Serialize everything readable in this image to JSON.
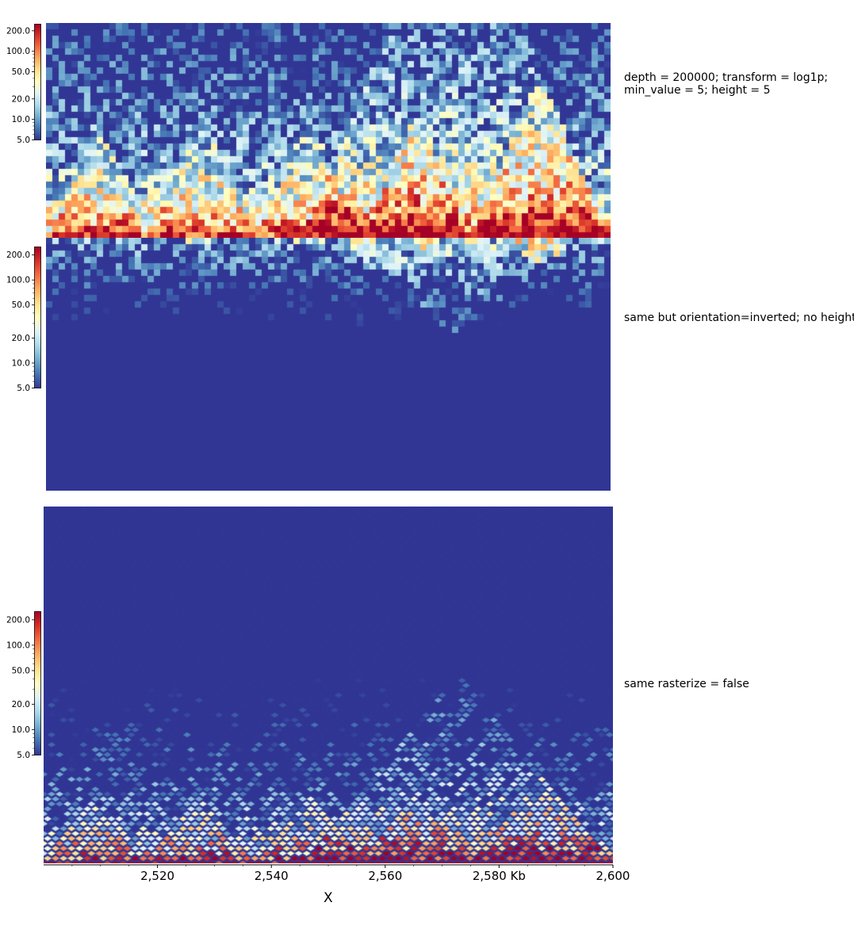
{
  "chart_data": {
    "type": "heatmap",
    "colormap": [
      "#313695",
      "#4575b4",
      "#74add1",
      "#abd9e9",
      "#e0f3f8",
      "#ffffbf",
      "#fee090",
      "#fdae61",
      "#f46d43",
      "#d73027",
      "#a50026"
    ],
    "x_axis": {
      "range": [
        2500,
        2600
      ],
      "ticks": [
        2520,
        2540,
        2560,
        2580,
        2600
      ],
      "tick_labels": [
        "2,520",
        "2,540",
        "2,560",
        "2,580 Kb",
        "2,600"
      ],
      "label": "X"
    },
    "colorbar": {
      "scale": "log",
      "range": [
        5,
        250
      ],
      "ticks": [
        5,
        10,
        20,
        50,
        100,
        200
      ],
      "tick_labels": [
        "5.0",
        "10.0",
        "20.0",
        "50.0",
        "100.0",
        "200.0"
      ]
    },
    "tracks": [
      {
        "name": "top",
        "label": "depth = 200000; transform = log1p;\nmin_value = 5; height = 5",
        "orientation": "normal",
        "depth_kb": 200
      },
      {
        "name": "middle",
        "label": "same but orientation=inverted; no height",
        "orientation": "inverted",
        "depth_kb": 200
      },
      {
        "name": "bottom",
        "label": "same rasterize = false",
        "orientation": "normal",
        "rasterize": false,
        "depth_kb": 200
      }
    ]
  }
}
